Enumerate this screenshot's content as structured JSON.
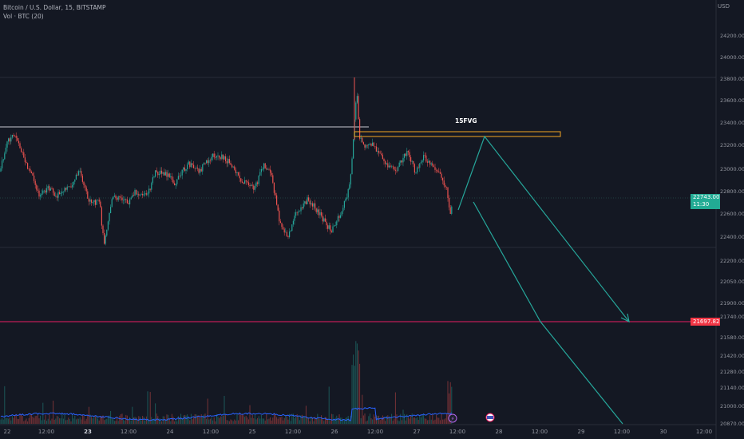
{
  "header": {
    "symbol_line": "Bitcoin / U.S. Dollar, 15, BITSTAMP",
    "volume_line": "Vol · BTC (20)",
    "currency": "USD"
  },
  "price_axis": {
    "ticks": [
      "24200.00",
      "24000.00",
      "23800.00",
      "23600.00",
      "23400.00",
      "23200.00",
      "23000.00",
      "22800.00",
      "22600.00",
      "22400.00",
      "22200.00",
      "22050.00",
      "21900.00",
      "21740.00",
      "21580.00",
      "21420.00",
      "21280.00",
      "21140.00",
      "21000.00",
      "20870.00"
    ]
  },
  "current_price": {
    "value": "22743.00",
    "countdown": "11:30",
    "color": "#22ab94"
  },
  "target_price": {
    "value": "21697.82",
    "color": "#f23645"
  },
  "annotations": {
    "fvg_label": "15FVG",
    "fvg_color": "#f5a623",
    "arrow_color": "#26a69a"
  },
  "time_axis": {
    "ticks": [
      {
        "label": "22",
        "day": false
      },
      {
        "label": "12:00",
        "day": false
      },
      {
        "label": "23",
        "day": true
      },
      {
        "label": "12:00",
        "day": false
      },
      {
        "label": "24",
        "day": false
      },
      {
        "label": "12:00",
        "day": false
      },
      {
        "label": "25",
        "day": false
      },
      {
        "label": "12:00",
        "day": false
      },
      {
        "label": "26",
        "day": false
      },
      {
        "label": "12:00",
        "day": false
      },
      {
        "label": "27",
        "day": false
      },
      {
        "label": "12:00",
        "day": false
      },
      {
        "label": "28",
        "day": false
      },
      {
        "label": "12:00",
        "day": false
      },
      {
        "label": "29",
        "day": false
      },
      {
        "label": "12:00",
        "day": false
      },
      {
        "label": "30",
        "day": false
      },
      {
        "label": "12:00",
        "day": false
      }
    ]
  },
  "colors": {
    "up": "#26a69a",
    "down": "#ef5350",
    "volume_ma": "#2962ff",
    "background": "#141823"
  }
}
